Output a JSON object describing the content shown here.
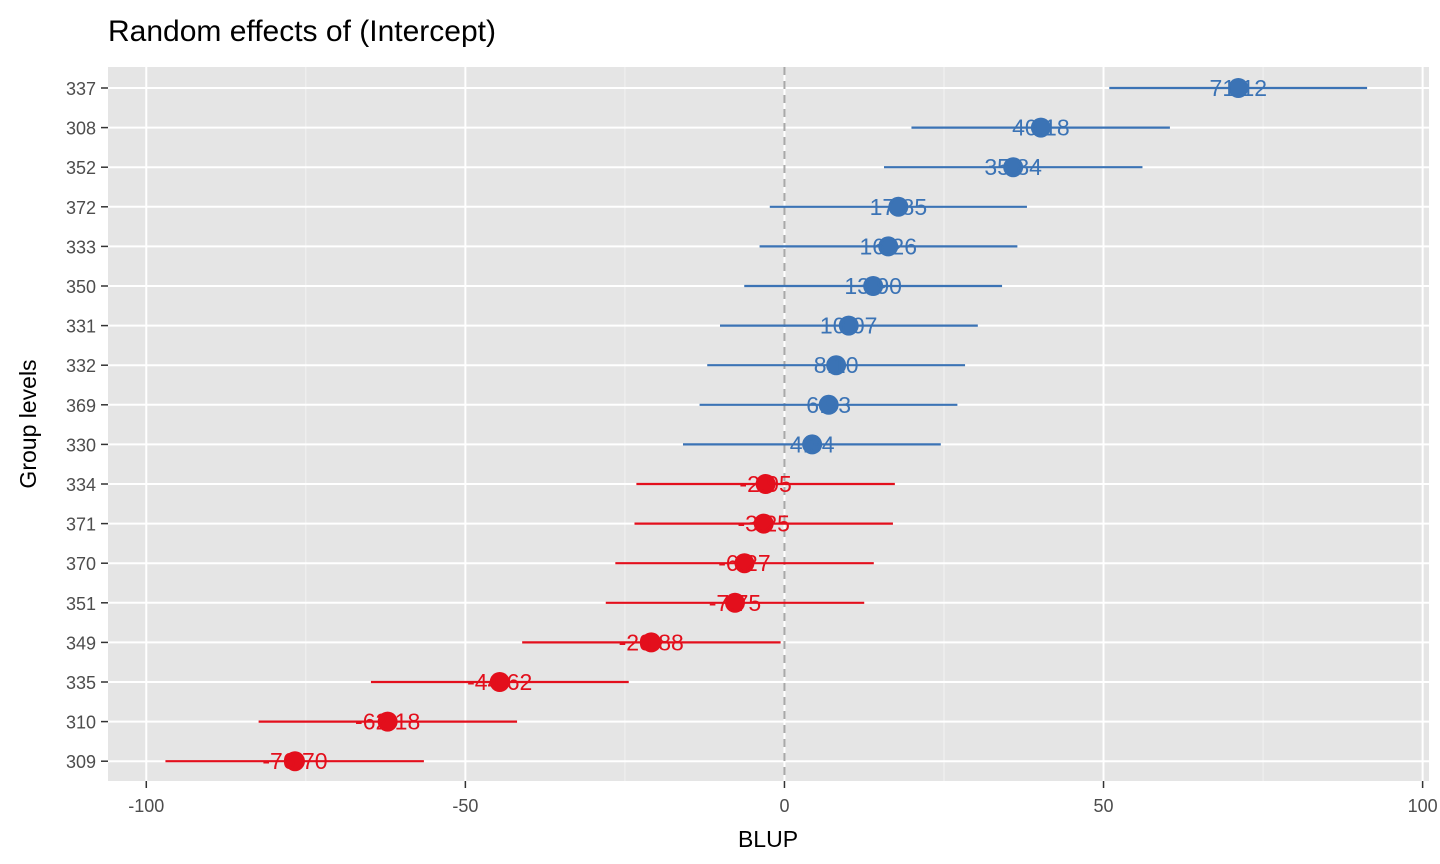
{
  "chart_data": {
    "type": "scatter",
    "title": "Random effects of  (Intercept)",
    "xlabel": "BLUP",
    "ylabel": "Group levels",
    "xlim": [
      -106,
      101
    ],
    "x_ticks": [
      -100,
      -50,
      0,
      50,
      100
    ],
    "x_tick_labels": [
      "-100",
      "-50",
      "0",
      "50",
      "100"
    ],
    "reference_line": 0,
    "grid": true,
    "colors": {
      "positive": "#3b73b5",
      "negative": "#e30f1c",
      "reference": "#a8a8a8",
      "panel": "#e5e5e5",
      "grid": "#ffffff"
    },
    "levels": [
      {
        "group": "337",
        "value": 71.12,
        "label": "71.12",
        "lower": 50.9,
        "upper": 91.3
      },
      {
        "group": "308",
        "value": 40.18,
        "label": "40.18",
        "lower": 19.9,
        "upper": 60.4
      },
      {
        "group": "352",
        "value": 35.84,
        "label": "35.84",
        "lower": 15.6,
        "upper": 56.1
      },
      {
        "group": "372",
        "value": 17.85,
        "label": "17.85",
        "lower": -2.3,
        "upper": 38.0
      },
      {
        "group": "333",
        "value": 16.26,
        "label": "16.26",
        "lower": -3.9,
        "upper": 36.5
      },
      {
        "group": "350",
        "value": 13.9,
        "label": "13.90",
        "lower": -6.3,
        "upper": 34.1
      },
      {
        "group": "331",
        "value": 10.07,
        "label": "10.07",
        "lower": -10.1,
        "upper": 30.3
      },
      {
        "group": "332",
        "value": 8.1,
        "label": "8.10",
        "lower": -12.1,
        "upper": 28.3
      },
      {
        "group": "369",
        "value": 6.93,
        "label": "6.93",
        "lower": -13.3,
        "upper": 27.1
      },
      {
        "group": "330",
        "value": 4.34,
        "label": "4.34",
        "lower": -15.9,
        "upper": 24.5
      },
      {
        "group": "334",
        "value": -2.95,
        "label": "-2.95",
        "lower": -23.2,
        "upper": 17.3
      },
      {
        "group": "371",
        "value": -3.25,
        "label": "-3.25",
        "lower": -23.5,
        "upper": 17.0
      },
      {
        "group": "370",
        "value": -6.27,
        "label": "-6.27",
        "lower": -26.5,
        "upper": 14.0
      },
      {
        "group": "351",
        "value": -7.75,
        "label": "-7.75",
        "lower": -28.0,
        "upper": 12.5
      },
      {
        "group": "349",
        "value": -20.88,
        "label": "-20.88",
        "lower": -41.1,
        "upper": -0.6
      },
      {
        "group": "335",
        "value": -44.62,
        "label": "-44.62",
        "lower": -64.8,
        "upper": -24.4
      },
      {
        "group": "310",
        "value": -62.18,
        "label": "-62.18",
        "lower": -82.4,
        "upper": -41.9
      },
      {
        "group": "309",
        "value": -76.7,
        "label": "-76.70",
        "lower": -97.0,
        "upper": -56.5
      }
    ]
  }
}
